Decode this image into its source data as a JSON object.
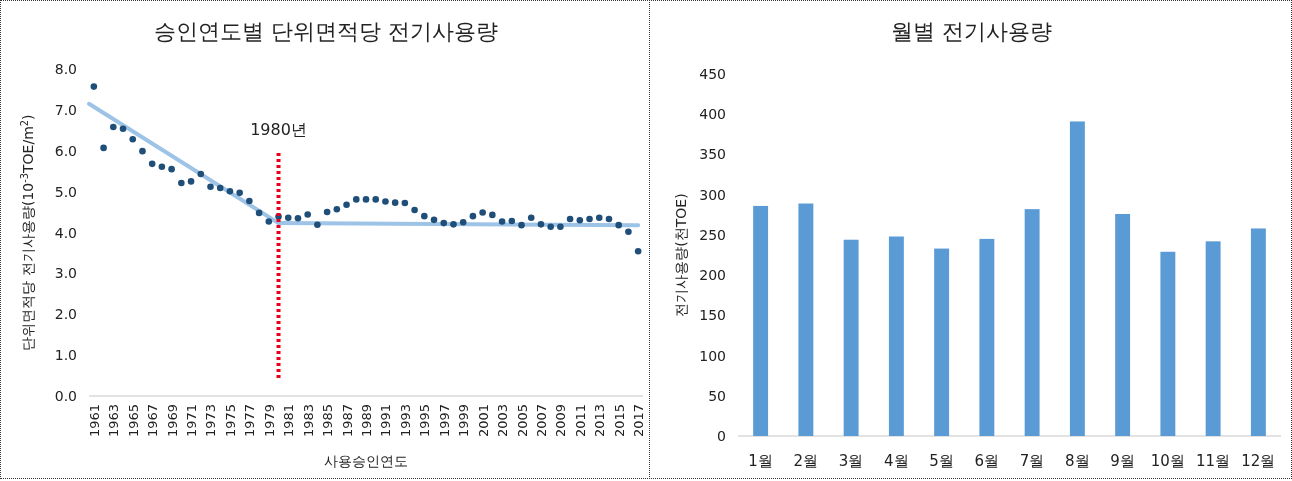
{
  "chart_data": [
    {
      "type": "scatter",
      "title": "승인연도별 단위면적당 전기사용량",
      "xlabel": "사용승인연도",
      "ylabel": "단위면적당 전기사용량(10$^{-3}$TOE/m$^{2}$)",
      "series": [
        {
          "type": "scatter",
          "marker": "circle",
          "color": "#1f4e79",
          "x": [
            1961,
            1962,
            1963,
            1964,
            1965,
            1966,
            1967,
            1968,
            1969,
            1970,
            1971,
            1972,
            1973,
            1974,
            1975,
            1976,
            1977,
            1978,
            1979,
            1980,
            1981,
            1982,
            1983,
            1984,
            1985,
            1986,
            1987,
            1988,
            1989,
            1990,
            1991,
            1992,
            1993,
            1994,
            1995,
            1996,
            1997,
            1998,
            1999,
            2000,
            2001,
            2002,
            2003,
            2004,
            2005,
            2006,
            2007,
            2008,
            2009,
            2010,
            2011,
            2012,
            2013,
            2014,
            2015,
            2016,
            2017
          ],
          "values": [
            7.57,
            6.07,
            6.58,
            6.54,
            6.28,
            5.99,
            5.68,
            5.61,
            5.55,
            5.21,
            5.25,
            5.43,
            5.12,
            5.09,
            5.01,
            4.97,
            4.77,
            4.48,
            4.27,
            4.39,
            4.36,
            4.35,
            4.44,
            4.19,
            4.5,
            4.57,
            4.68,
            4.81,
            4.81,
            4.81,
            4.76,
            4.73,
            4.72,
            4.55,
            4.4,
            4.31,
            4.23,
            4.2,
            4.25,
            4.4,
            4.49,
            4.43,
            4.27,
            4.28,
            4.18,
            4.36,
            4.2,
            4.14,
            4.14,
            4.33,
            4.3,
            4.33,
            4.36,
            4.33,
            4.18,
            4.02,
            3.54
          ]
        },
        {
          "type": "line",
          "color": "#9dc3e6",
          "x": [
            1960.5,
            1980
          ],
          "values": [
            7.15,
            4.23
          ]
        },
        {
          "type": "line",
          "color": "#9dc3e6",
          "x": [
            1980,
            2017
          ],
          "values": [
            4.23,
            4.18
          ]
        }
      ],
      "xlim": [
        1960.5,
        2017.5
      ],
      "xticks": [
        1961,
        1963,
        1965,
        1967,
        1969,
        1971,
        1973,
        1975,
        1977,
        1979,
        1981,
        1983,
        1985,
        1987,
        1989,
        1991,
        1993,
        1995,
        1997,
        1999,
        2001,
        2003,
        2005,
        2007,
        2009,
        2011,
        2013,
        2015,
        2017
      ],
      "ylim": [
        0,
        8
      ],
      "yticks": [
        {
          "value": 0,
          "label": "0.0"
        },
        {
          "value": 1,
          "label": "1.0"
        },
        {
          "value": 2,
          "label": "2.0"
        },
        {
          "value": 3,
          "label": "3.0"
        },
        {
          "value": 4,
          "label": "4.0"
        },
        {
          "value": 5,
          "label": "5.0"
        },
        {
          "value": 6,
          "label": "6.0"
        },
        {
          "value": 7,
          "label": "7.0"
        },
        {
          "value": 8,
          "label": "8.0"
        }
      ],
      "ref_lines": [
        {
          "axis": "x",
          "value": 1980,
          "label": "1980년",
          "color": "#e8001c",
          "line_style": "dotted"
        }
      ]
    },
    {
      "type": "bar",
      "title": "월별 전기사용량",
      "ylabel": "전기사용량(천TOE)",
      "categories": [
        "1월",
        "2월",
        "3월",
        "4월",
        "5월",
        "6월",
        "7월",
        "8월",
        "9월",
        "10월",
        "11월",
        "12월"
      ],
      "values": [
        286,
        289,
        244,
        248,
        233,
        245,
        282,
        391,
        276,
        229,
        242,
        258
      ],
      "color": "#5b9bd5",
      "ylim": [
        0,
        450
      ],
      "yticks": [
        0,
        50,
        100,
        150,
        200,
        250,
        300,
        350,
        400,
        450
      ]
    }
  ]
}
